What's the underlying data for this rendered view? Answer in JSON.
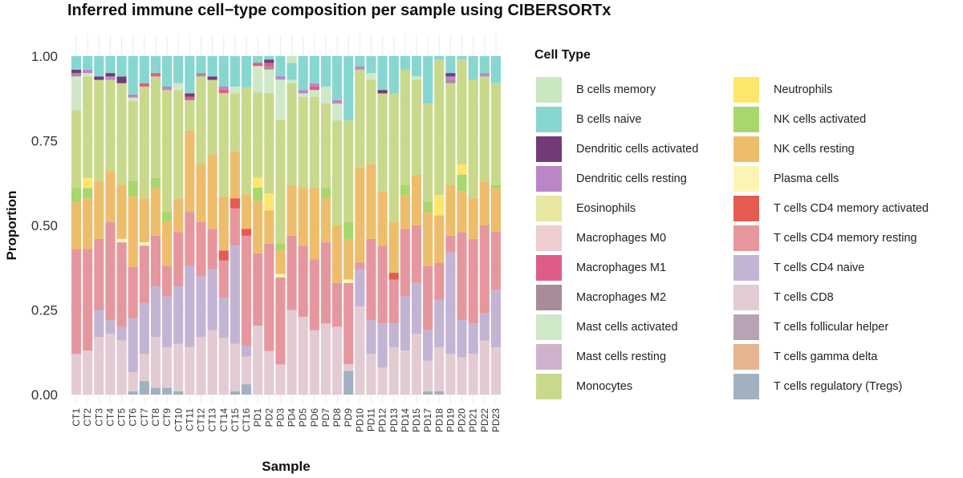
{
  "chart_data": {
    "type": "bar",
    "stacked": true,
    "title": "Inferred immune cell−type composition per sample using CIBERSORTx",
    "xlabel": "Sample",
    "ylabel": "Proportion",
    "ylim": [
      0,
      1
    ],
    "yticks": [
      "0.00",
      "0.25",
      "0.50",
      "0.75",
      "1.00"
    ],
    "legend_title": "Cell Type",
    "categories": [
      "CT1",
      "CT2",
      "CT3",
      "CT4",
      "CT5",
      "CT6",
      "CT7",
      "CT8",
      "CT9",
      "CT10",
      "CT11",
      "CT12",
      "CT13",
      "CT14",
      "CT15",
      "CT16",
      "PD1",
      "PD2",
      "PD3",
      "PD4",
      "PD5",
      "PD6",
      "PD7",
      "PD8",
      "PD9",
      "PD10",
      "PD11",
      "PD12",
      "PD13",
      "PD14",
      "PD15",
      "PD17",
      "PD18",
      "PD19",
      "PD20",
      "PD21",
      "PD22",
      "PD23"
    ],
    "series": [
      {
        "name": "T cells regulatory (Tregs)",
        "color": "#a1b1bf",
        "values": [
          0,
          0,
          0,
          0,
          0,
          0.01,
          0.04,
          0.02,
          0.02,
          0.01,
          0,
          0,
          0,
          0,
          0.01,
          0.03,
          0,
          0,
          0,
          0,
          0,
          0,
          0,
          0,
          0.07,
          0,
          0,
          0,
          0,
          0,
          0,
          0.01,
          0.01,
          0,
          0,
          0,
          0,
          0
        ]
      },
      {
        "name": "T cells gamma delta",
        "color": "#e6b48f",
        "values": [
          0,
          0,
          0,
          0,
          0,
          0,
          0,
          0,
          0,
          0,
          0,
          0,
          0,
          0,
          0,
          0,
          0,
          0,
          0,
          0,
          0,
          0,
          0,
          0,
          0,
          0,
          0,
          0,
          0,
          0,
          0,
          0,
          0,
          0,
          0,
          0,
          0,
          0
        ]
      },
      {
        "name": "T cells follicular helper",
        "color": "#b7a3b6",
        "values": [
          0,
          0,
          0,
          0,
          0,
          0,
          0,
          0,
          0,
          0,
          0,
          0,
          0,
          0,
          0,
          0,
          0,
          0,
          0,
          0,
          0,
          0,
          0,
          0,
          0,
          0,
          0,
          0,
          0,
          0,
          0,
          0,
          0,
          0,
          0,
          0,
          0,
          0
        ]
      },
      {
        "name": "T cells CD8",
        "color": "#e3cbd3",
        "values": [
          0.12,
          0.13,
          0.17,
          0.18,
          0.16,
          0.06,
          0.08,
          0.15,
          0.12,
          0.14,
          0.14,
          0.17,
          0.19,
          0.17,
          0.14,
          0.08,
          0.21,
          0.13,
          0.09,
          0.25,
          0.23,
          0.19,
          0.21,
          0.2,
          0.02,
          0.26,
          0.12,
          0.08,
          0.14,
          0.13,
          0.18,
          0.09,
          0.13,
          0.12,
          0.11,
          0.12,
          0.16,
          0.14
        ]
      },
      {
        "name": "T cells CD4 naive",
        "color": "#c4b4d4",
        "values": [
          0,
          0,
          0.08,
          0.04,
          0.04,
          0.17,
          0.15,
          0.15,
          0.15,
          0.17,
          0.24,
          0.18,
          0.18,
          0.12,
          0.29,
          0.03,
          0,
          0,
          0,
          0,
          0,
          0,
          0,
          0,
          0,
          0.11,
          0.1,
          0.13,
          0.07,
          0.16,
          0.15,
          0.09,
          0.14,
          0.3,
          0.11,
          0.09,
          0.08,
          0.17
        ]
      },
      {
        "name": "T cells CD4 memory resting",
        "color": "#e6979d",
        "values": [
          0.31,
          0.3,
          0.21,
          0.29,
          0.25,
          0.16,
          0.17,
          0.15,
          0.09,
          0.16,
          0.16,
          0.16,
          0.12,
          0.11,
          0.11,
          0.32,
          0.22,
          0.32,
          0.26,
          0.22,
          0.21,
          0.21,
          0.24,
          0.13,
          0.24,
          0.02,
          0.24,
          0.23,
          0.13,
          0.2,
          0.17,
          0.19,
          0.11,
          0.05,
          0.26,
          0.25,
          0.26,
          0.17
        ]
      },
      {
        "name": "T cells CD4 memory activated",
        "color": "#e45b51",
        "values": [
          0,
          0,
          0,
          0,
          0,
          0,
          0,
          0,
          0,
          0,
          0,
          0,
          0,
          0.03,
          0.03,
          0.02,
          0,
          0,
          0,
          0,
          0,
          0,
          0,
          0,
          0,
          0,
          0,
          0,
          0.02,
          0,
          0,
          0,
          0,
          0,
          0,
          0,
          0,
          0
        ]
      },
      {
        "name": "Plasma cells",
        "color": "#fbf5b4",
        "values": [
          0,
          0,
          0,
          0,
          0.01,
          0,
          0.01,
          0,
          0,
          0,
          0,
          0,
          0,
          0,
          0,
          0,
          0,
          0,
          0.01,
          0,
          0,
          0,
          0,
          0,
          0.01,
          0,
          0,
          0,
          0,
          0,
          0,
          0,
          0,
          0,
          0,
          0,
          0,
          0
        ]
      },
      {
        "name": "NK cells resting",
        "color": "#eebd6c",
        "values": [
          0.14,
          0.15,
          0.17,
          0.15,
          0.16,
          0.22,
          0.13,
          0.14,
          0.13,
          0.1,
          0.24,
          0.17,
          0.22,
          0.16,
          0.14,
          0.1,
          0.16,
          0.1,
          0.07,
          0.15,
          0.17,
          0.21,
          0.13,
          0.17,
          0.12,
          0.28,
          0.22,
          0.16,
          0.15,
          0.1,
          0.15,
          0.16,
          0.14,
          0.15,
          0.12,
          0.12,
          0.13,
          0.13
        ]
      },
      {
        "name": "NK cells activated",
        "color": "#a8d76d",
        "values": [
          0.04,
          0.03,
          0,
          0,
          0,
          0.05,
          0,
          0.03,
          0.03,
          0,
          0,
          0,
          0,
          0,
          0,
          0,
          0.04,
          0,
          0.02,
          0,
          0,
          0,
          0.03,
          0,
          0.05,
          0,
          0,
          0,
          0,
          0.03,
          0,
          0.03,
          0,
          0,
          0.05,
          0,
          0,
          0.01
        ]
      },
      {
        "name": "Neutrophils",
        "color": "#fde66b",
        "values": [
          0,
          0.03,
          0,
          0,
          0,
          0,
          0,
          0,
          0,
          0,
          0,
          0,
          0,
          0,
          0,
          0,
          0.03,
          0.05,
          0,
          0,
          0,
          0,
          0,
          0,
          0,
          0,
          0,
          0,
          0,
          0,
          0,
          0,
          0.06,
          0,
          0.03,
          0,
          0,
          0
        ]
      },
      {
        "name": "Monocytes",
        "color": "#c9d98c",
        "values": [
          0.23,
          0.3,
          0.3,
          0.27,
          0.3,
          0.25,
          0.33,
          0.3,
          0.36,
          0.32,
          0.09,
          0.26,
          0.22,
          0.31,
          0.17,
          0.31,
          0.26,
          0.3,
          0.37,
          0.3,
          0.27,
          0.27,
          0.25,
          0.31,
          0.3,
          0.29,
          0.25,
          0.29,
          0.38,
          0.34,
          0.28,
          0.29,
          0.4,
          0.3,
          0.31,
          0.35,
          0.31,
          0.3
        ]
      },
      {
        "name": "Mast cells resting",
        "color": "#cfb3cc",
        "values": [
          0,
          0,
          0,
          0,
          0,
          0,
          0,
          0,
          0,
          0,
          0,
          0,
          0,
          0,
          0,
          0,
          0,
          0,
          0,
          0,
          0,
          0,
          0,
          0,
          0,
          0,
          0,
          0,
          0,
          0,
          0,
          0,
          0,
          0,
          0,
          0,
          0,
          0
        ]
      },
      {
        "name": "Mast cells activated",
        "color": "#cfe8c8",
        "values": [
          0.1,
          0.01,
          0,
          0,
          0,
          0.01,
          0,
          0,
          0,
          0.02,
          0,
          0,
          0,
          0,
          0.02,
          0,
          0.08,
          0.07,
          0.12,
          0.01,
          0.01,
          0.02,
          0.05,
          0.05,
          0,
          0,
          0.02,
          0,
          0,
          0,
          0.01,
          0,
          0,
          0,
          0,
          0,
          0,
          0
        ]
      },
      {
        "name": "Macrophages M2",
        "color": "#a88c9a",
        "values": [
          0.01,
          0,
          0,
          0,
          0,
          0,
          0,
          0,
          0,
          0,
          0,
          0.01,
          0,
          0,
          0,
          0,
          0,
          0.01,
          0,
          0,
          0,
          0,
          0,
          0,
          0,
          0,
          0,
          0,
          0,
          0,
          0,
          0,
          0,
          0.01,
          0,
          0,
          0,
          0
        ]
      },
      {
        "name": "Macrophages M1",
        "color": "#df5c8a",
        "values": [
          0,
          0,
          0,
          0,
          0,
          0,
          0.01,
          0.01,
          0,
          0,
          0.01,
          0,
          0,
          0.01,
          0,
          0,
          0.01,
          0.01,
          0,
          0,
          0,
          0.01,
          0,
          0,
          0,
          0,
          0,
          0,
          0,
          0,
          0,
          0,
          0,
          0,
          0,
          0,
          0,
          0
        ]
      },
      {
        "name": "Macrophages M0",
        "color": "#efcccf",
        "values": [
          0,
          0,
          0,
          0,
          0,
          0,
          0,
          0,
          0,
          0,
          0,
          0,
          0,
          0,
          0,
          0,
          0,
          0,
          0,
          0,
          0,
          0,
          0,
          0,
          0,
          0,
          0,
          0,
          0,
          0,
          0,
          0,
          0,
          0,
          0,
          0,
          0,
          0
        ]
      },
      {
        "name": "Eosinophils",
        "color": "#e8e6a0",
        "values": [
          0,
          0,
          0,
          0,
          0,
          0,
          0,
          0,
          0,
          0,
          0,
          0,
          0,
          0,
          0,
          0,
          0,
          0,
          0,
          0,
          0,
          0,
          0,
          0,
          0,
          0,
          0,
          0,
          0,
          0,
          0,
          0,
          0,
          0,
          0,
          0,
          0,
          0
        ]
      },
      {
        "name": "Dendritic cells resting",
        "color": "#bb86c8",
        "values": [
          0,
          0.01,
          0,
          0.01,
          0,
          0.01,
          0,
          0,
          0.01,
          0,
          0,
          0,
          0,
          0.01,
          0,
          0,
          0,
          0,
          0.01,
          0,
          0.01,
          0.01,
          0,
          0.01,
          0,
          0.01,
          0,
          0,
          0,
          0,
          0,
          0,
          0,
          0.01,
          0,
          0,
          0.01,
          0
        ]
      },
      {
        "name": "Dendritic cells activated",
        "color": "#733a7a",
        "values": [
          0.01,
          0,
          0.01,
          0.01,
          0.02,
          0,
          0,
          0,
          0,
          0,
          0.01,
          0,
          0.01,
          0,
          0,
          0,
          0,
          0.01,
          0,
          0,
          0,
          0,
          0,
          0,
          0,
          0,
          0,
          0.01,
          0,
          0,
          0,
          0,
          0,
          0.01,
          0,
          0,
          0,
          0
        ]
      },
      {
        "name": "B cells naive",
        "color": "#86d7cf",
        "values": [
          0.04,
          0.04,
          0.06,
          0.05,
          0.06,
          0.12,
          0.08,
          0.05,
          0.09,
          0.08,
          0.11,
          0.05,
          0.06,
          0.09,
          0.09,
          0.09,
          0.02,
          0.01,
          0.06,
          0.05,
          0.1,
          0.08,
          0.09,
          0.13,
          0.19,
          0.03,
          0.05,
          0.1,
          0.11,
          0.04,
          0.06,
          0.14,
          0.01,
          0.05,
          0.01,
          0.07,
          0.05,
          0.08
        ]
      },
      {
        "name": "B cells memory",
        "color": "#c9e7c1",
        "values": [
          0,
          0,
          0,
          0,
          0,
          0,
          0,
          0,
          0,
          0,
          0,
          0,
          0,
          0,
          0,
          0,
          0,
          0,
          0,
          0.02,
          0,
          0,
          0,
          0,
          0,
          0,
          0,
          0,
          0,
          0,
          0,
          0,
          0,
          0,
          0,
          0,
          0,
          0
        ]
      }
    ]
  },
  "legend": {
    "left": [
      "B cells memory",
      "B cells naive",
      "Dendritic cells activated",
      "Dendritic cells resting",
      "Eosinophils",
      "Macrophages M0",
      "Macrophages M1",
      "Macrophages M2",
      "Mast cells activated",
      "Mast cells resting",
      "Monocytes"
    ],
    "right": [
      "Neutrophils",
      "NK cells activated",
      "NK cells resting",
      "Plasma cells",
      "T cells CD4 memory activated",
      "T cells CD4 memory resting",
      "T cells CD4 naive",
      "T cells CD8",
      "T cells follicular helper",
      "T cells gamma delta",
      "T cells regulatory (Tregs)"
    ]
  }
}
